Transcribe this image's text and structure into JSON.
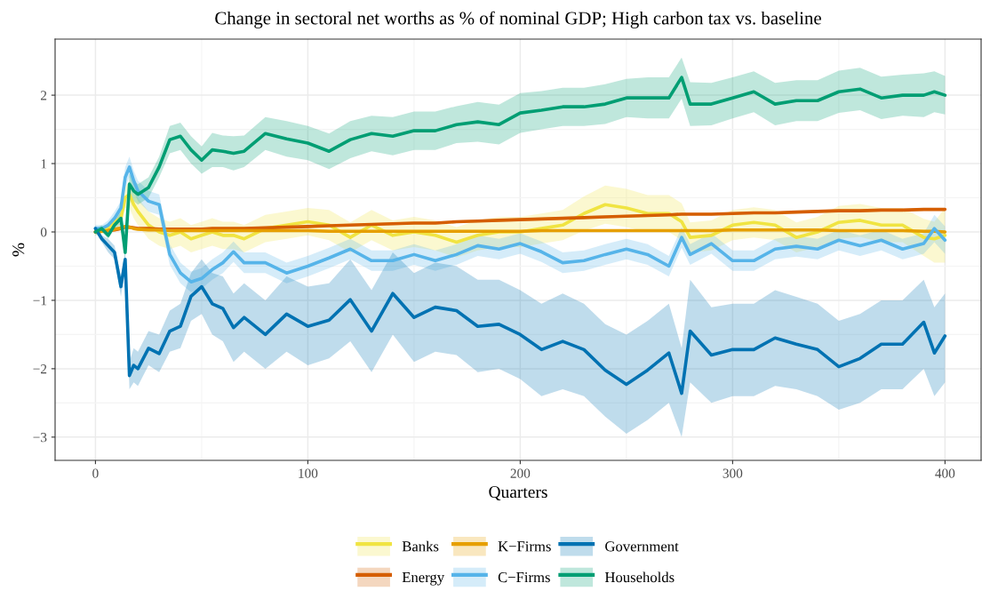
{
  "chart_data": {
    "type": "line",
    "title": "Change in sectoral net worths as % of nominal GDP; High carbon tax vs. baseline",
    "xlabel": "Quarters",
    "ylabel": "%",
    "x": [
      0,
      3,
      6,
      9,
      12,
      14,
      16,
      18,
      20,
      25,
      30,
      35,
      40,
      45,
      50,
      55,
      60,
      65,
      70,
      80,
      90,
      100,
      110,
      120,
      130,
      140,
      150,
      160,
      170,
      180,
      190,
      200,
      210,
      220,
      230,
      240,
      250,
      260,
      270,
      276,
      280,
      290,
      300,
      310,
      320,
      330,
      340,
      350,
      360,
      370,
      380,
      390,
      395,
      400
    ],
    "xlim": [
      -19,
      417
    ],
    "ylim": [
      -3.34,
      2.82
    ],
    "xticks": [
      0,
      100,
      200,
      300,
      400
    ],
    "yticks": [
      -3,
      -2,
      -1,
      0,
      1,
      2
    ],
    "grid": true,
    "legend": "bottom",
    "line_style": "solid",
    "marker": "none",
    "series": [
      {
        "name": "Banks",
        "color": "#f0e442",
        "values": [
          0.0,
          0.02,
          0.05,
          0.15,
          0.2,
          0.5,
          0.55,
          0.4,
          0.3,
          0.1,
          0.0,
          -0.05,
          0.0,
          -0.1,
          -0.05,
          0.0,
          -0.05,
          -0.05,
          -0.1,
          0.05,
          0.1,
          0.15,
          0.1,
          -0.08,
          0.1,
          -0.05,
          0.0,
          -0.05,
          -0.15,
          -0.05,
          0.0,
          0.0,
          0.05,
          0.1,
          0.27,
          0.4,
          0.35,
          0.27,
          0.27,
          0.15,
          -0.08,
          -0.05,
          0.1,
          0.14,
          0.1,
          -0.08,
          0.0,
          0.14,
          0.17,
          0.1,
          0.1,
          -0.08,
          -0.1,
          -0.05
        ],
        "lower": [
          -0.05,
          -0.03,
          0.0,
          0.08,
          0.1,
          0.35,
          0.35,
          0.2,
          0.1,
          -0.1,
          -0.2,
          -0.25,
          -0.2,
          -0.3,
          -0.25,
          -0.2,
          -0.25,
          -0.25,
          -0.3,
          -0.15,
          -0.1,
          -0.05,
          -0.12,
          -0.3,
          -0.12,
          -0.27,
          -0.22,
          -0.27,
          -0.37,
          -0.27,
          -0.22,
          -0.22,
          -0.17,
          -0.12,
          0.02,
          0.12,
          0.07,
          0.0,
          0.0,
          -0.12,
          -0.3,
          -0.27,
          -0.12,
          -0.08,
          -0.12,
          -0.3,
          -0.22,
          -0.1,
          -0.07,
          -0.15,
          -0.15,
          -0.35,
          -0.45,
          -0.45
        ],
        "upper": [
          0.05,
          0.07,
          0.1,
          0.22,
          0.3,
          0.65,
          0.75,
          0.6,
          0.5,
          0.3,
          0.2,
          0.15,
          0.2,
          0.1,
          0.15,
          0.2,
          0.15,
          0.15,
          0.1,
          0.25,
          0.3,
          0.35,
          0.32,
          0.14,
          0.32,
          0.17,
          0.22,
          0.17,
          0.07,
          0.17,
          0.22,
          0.22,
          0.27,
          0.32,
          0.52,
          0.68,
          0.63,
          0.54,
          0.54,
          0.42,
          0.14,
          0.17,
          0.32,
          0.36,
          0.32,
          0.14,
          0.22,
          0.38,
          0.41,
          0.35,
          0.35,
          0.19,
          0.15,
          0.35
        ]
      },
      {
        "name": "Energy",
        "color": "#d55e00",
        "values": [
          0.0,
          0.01,
          0.02,
          0.03,
          0.05,
          0.07,
          0.07,
          0.06,
          0.05,
          0.05,
          0.04,
          0.04,
          0.04,
          0.04,
          0.04,
          0.05,
          0.05,
          0.05,
          0.05,
          0.06,
          0.07,
          0.08,
          0.09,
          0.1,
          0.11,
          0.12,
          0.13,
          0.13,
          0.15,
          0.16,
          0.17,
          0.18,
          0.19,
          0.2,
          0.21,
          0.22,
          0.23,
          0.24,
          0.25,
          0.26,
          0.26,
          0.26,
          0.27,
          0.28,
          0.28,
          0.29,
          0.3,
          0.31,
          0.31,
          0.32,
          0.32,
          0.33,
          0.33,
          0.33
        ],
        "lower": [
          -0.02,
          -0.01,
          0.0,
          0.01,
          0.03,
          0.05,
          0.05,
          0.04,
          0.03,
          0.03,
          0.02,
          0.02,
          0.02,
          0.02,
          0.02,
          0.03,
          0.03,
          0.03,
          0.03,
          0.04,
          0.05,
          0.06,
          0.07,
          0.08,
          0.09,
          0.1,
          0.11,
          0.11,
          0.13,
          0.14,
          0.15,
          0.16,
          0.17,
          0.18,
          0.19,
          0.2,
          0.21,
          0.22,
          0.23,
          0.24,
          0.24,
          0.24,
          0.25,
          0.26,
          0.26,
          0.27,
          0.28,
          0.29,
          0.29,
          0.3,
          0.3,
          0.31,
          0.31,
          0.31
        ],
        "upper": [
          0.02,
          0.03,
          0.04,
          0.05,
          0.07,
          0.09,
          0.09,
          0.08,
          0.07,
          0.07,
          0.06,
          0.06,
          0.06,
          0.06,
          0.06,
          0.07,
          0.07,
          0.07,
          0.07,
          0.08,
          0.09,
          0.1,
          0.11,
          0.12,
          0.13,
          0.14,
          0.15,
          0.15,
          0.17,
          0.18,
          0.19,
          0.2,
          0.21,
          0.22,
          0.23,
          0.24,
          0.25,
          0.26,
          0.27,
          0.28,
          0.28,
          0.28,
          0.29,
          0.3,
          0.3,
          0.31,
          0.32,
          0.33,
          0.33,
          0.34,
          0.34,
          0.35,
          0.35,
          0.35
        ]
      },
      {
        "name": "K−Firms",
        "color": "#e69f00",
        "values": [
          0.0,
          0.01,
          0.02,
          0.04,
          0.06,
          0.08,
          0.07,
          0.05,
          0.04,
          0.03,
          0.03,
          0.02,
          0.02,
          0.02,
          0.02,
          0.02,
          0.02,
          0.02,
          0.02,
          0.02,
          0.02,
          0.02,
          0.01,
          0.01,
          0.01,
          0.01,
          0.01,
          0.01,
          0.01,
          0.01,
          0.01,
          0.01,
          0.02,
          0.02,
          0.02,
          0.02,
          0.02,
          0.02,
          0.02,
          0.02,
          0.02,
          0.02,
          0.03,
          0.03,
          0.03,
          0.03,
          0.03,
          0.02,
          0.02,
          0.02,
          0.02,
          0.01,
          0.01,
          0.0
        ],
        "lower": [
          -0.02,
          -0.01,
          0.0,
          0.02,
          0.04,
          0.06,
          0.05,
          0.03,
          0.02,
          0.01,
          0.01,
          0.0,
          0.0,
          0.0,
          0.0,
          0.0,
          0.0,
          0.0,
          0.0,
          0.0,
          0.0,
          0.0,
          -0.01,
          -0.01,
          -0.01,
          -0.01,
          -0.01,
          -0.01,
          -0.01,
          -0.01,
          -0.01,
          -0.01,
          0.0,
          0.0,
          0.0,
          0.0,
          0.0,
          0.0,
          0.0,
          0.0,
          0.0,
          0.0,
          0.01,
          0.01,
          0.01,
          0.01,
          0.01,
          0.0,
          0.0,
          0.0,
          0.0,
          -0.01,
          -0.01,
          -0.02
        ],
        "upper": [
          0.02,
          0.03,
          0.04,
          0.06,
          0.08,
          0.1,
          0.09,
          0.07,
          0.06,
          0.05,
          0.05,
          0.04,
          0.04,
          0.04,
          0.04,
          0.04,
          0.04,
          0.04,
          0.04,
          0.04,
          0.04,
          0.04,
          0.03,
          0.03,
          0.03,
          0.03,
          0.03,
          0.03,
          0.03,
          0.03,
          0.03,
          0.03,
          0.04,
          0.04,
          0.04,
          0.04,
          0.04,
          0.04,
          0.04,
          0.04,
          0.04,
          0.04,
          0.05,
          0.05,
          0.05,
          0.05,
          0.05,
          0.04,
          0.04,
          0.04,
          0.04,
          0.03,
          0.03,
          0.02
        ]
      },
      {
        "name": "C−Firms",
        "color": "#56b4e9",
        "values": [
          0.05,
          0.05,
          0.1,
          0.2,
          0.35,
          0.8,
          0.95,
          0.75,
          0.6,
          0.45,
          0.4,
          -0.33,
          -0.6,
          -0.73,
          -0.68,
          -0.55,
          -0.45,
          -0.29,
          -0.45,
          -0.45,
          -0.6,
          -0.5,
          -0.38,
          -0.25,
          -0.42,
          -0.42,
          -0.33,
          -0.42,
          -0.33,
          -0.2,
          -0.25,
          -0.17,
          -0.29,
          -0.45,
          -0.42,
          -0.33,
          -0.25,
          -0.33,
          -0.5,
          -0.08,
          -0.33,
          -0.17,
          -0.42,
          -0.42,
          -0.25,
          -0.21,
          -0.25,
          -0.12,
          -0.2,
          -0.12,
          -0.25,
          -0.17,
          0.05,
          -0.12
        ],
        "lower": [
          0.0,
          0.0,
          0.03,
          0.1,
          0.25,
          0.65,
          0.8,
          0.6,
          0.45,
          0.3,
          0.25,
          -0.48,
          -0.75,
          -0.88,
          -0.83,
          -0.7,
          -0.6,
          -0.44,
          -0.6,
          -0.6,
          -0.75,
          -0.65,
          -0.53,
          -0.4,
          -0.57,
          -0.57,
          -0.48,
          -0.57,
          -0.48,
          -0.35,
          -0.4,
          -0.32,
          -0.44,
          -0.6,
          -0.57,
          -0.48,
          -0.4,
          -0.48,
          -0.65,
          -0.23,
          -0.48,
          -0.32,
          -0.57,
          -0.57,
          -0.4,
          -0.36,
          -0.4,
          -0.27,
          -0.35,
          -0.27,
          -0.4,
          -0.32,
          -0.15,
          -0.32
        ],
        "upper": [
          0.1,
          0.1,
          0.17,
          0.3,
          0.45,
          0.95,
          1.1,
          0.9,
          0.75,
          0.6,
          0.55,
          -0.18,
          -0.45,
          -0.58,
          -0.53,
          -0.4,
          -0.3,
          -0.14,
          -0.3,
          -0.3,
          -0.45,
          -0.35,
          -0.23,
          -0.1,
          -0.27,
          -0.27,
          -0.18,
          -0.27,
          -0.18,
          -0.05,
          -0.1,
          -0.02,
          -0.14,
          -0.3,
          -0.27,
          -0.18,
          -0.1,
          -0.18,
          -0.35,
          0.07,
          -0.18,
          -0.02,
          -0.27,
          -0.27,
          -0.1,
          -0.06,
          -0.1,
          0.03,
          -0.05,
          0.03,
          -0.1,
          -0.02,
          0.25,
          0.08
        ]
      },
      {
        "name": "Government",
        "color": "#0072b2",
        "values": [
          0.05,
          -0.1,
          -0.2,
          -0.3,
          -0.8,
          -0.4,
          -2.1,
          -1.95,
          -2.0,
          -1.7,
          -1.78,
          -1.45,
          -1.38,
          -0.94,
          -0.8,
          -1.05,
          -1.12,
          -1.4,
          -1.25,
          -1.5,
          -1.2,
          -1.38,
          -1.29,
          -0.99,
          -1.45,
          -0.9,
          -1.25,
          -1.1,
          -1.15,
          -1.38,
          -1.35,
          -1.5,
          -1.72,
          -1.6,
          -1.72,
          -2.02,
          -2.23,
          -2.02,
          -1.77,
          -2.36,
          -1.45,
          -1.8,
          -1.72,
          -1.72,
          -1.55,
          -1.64,
          -1.72,
          -1.97,
          -1.85,
          -1.64,
          -1.64,
          -1.32,
          -1.77,
          -1.52
        ],
        "lower": [
          0.0,
          -0.15,
          -0.3,
          -0.4,
          -0.95,
          -0.5,
          -2.3,
          -2.2,
          -2.25,
          -1.95,
          -2.05,
          -1.75,
          -1.7,
          -1.3,
          -1.2,
          -1.5,
          -1.6,
          -1.9,
          -1.75,
          -2.0,
          -1.75,
          -1.95,
          -1.85,
          -1.6,
          -2.05,
          -1.5,
          -1.9,
          -1.75,
          -1.8,
          -2.05,
          -2.0,
          -2.15,
          -2.4,
          -2.3,
          -2.4,
          -2.7,
          -2.95,
          -2.75,
          -2.5,
          -3.0,
          -2.2,
          -2.5,
          -2.4,
          -2.4,
          -2.25,
          -2.3,
          -2.4,
          -2.6,
          -2.5,
          -2.3,
          -2.3,
          -2.0,
          -2.4,
          -2.2
        ],
        "upper": [
          0.1,
          -0.05,
          -0.1,
          -0.2,
          -0.65,
          -0.3,
          -1.9,
          -1.7,
          -1.75,
          -1.45,
          -1.5,
          -1.15,
          -1.05,
          -0.6,
          -0.4,
          -0.6,
          -0.65,
          -0.9,
          -0.75,
          -1.0,
          -0.65,
          -0.8,
          -0.75,
          -0.4,
          -0.85,
          -0.3,
          -0.6,
          -0.45,
          -0.5,
          -0.7,
          -0.7,
          -0.85,
          -1.05,
          -0.9,
          -1.05,
          -1.35,
          -1.5,
          -1.3,
          -1.05,
          -1.7,
          -0.7,
          -1.1,
          -1.05,
          -1.05,
          -0.85,
          -0.95,
          -1.05,
          -1.3,
          -1.2,
          -1.0,
          -1.0,
          -0.7,
          -1.1,
          -0.9
        ]
      },
      {
        "name": "Households",
        "color": "#009e73",
        "values": [
          0.0,
          0.05,
          -0.05,
          0.1,
          0.2,
          -0.3,
          0.7,
          0.6,
          0.55,
          0.65,
          0.95,
          1.35,
          1.4,
          1.2,
          1.05,
          1.2,
          1.18,
          1.15,
          1.18,
          1.44,
          1.36,
          1.3,
          1.18,
          1.35,
          1.44,
          1.4,
          1.48,
          1.48,
          1.57,
          1.61,
          1.57,
          1.74,
          1.78,
          1.83,
          1.83,
          1.87,
          1.96,
          1.96,
          1.96,
          2.26,
          1.87,
          1.87,
          1.96,
          2.05,
          1.87,
          1.92,
          1.92,
          2.05,
          2.09,
          1.96,
          2.0,
          2.0,
          2.05,
          2.0
        ],
        "lower": [
          -0.05,
          0.0,
          -0.1,
          0.05,
          0.1,
          -0.4,
          0.55,
          0.45,
          0.4,
          0.5,
          0.8,
          1.15,
          1.2,
          1.0,
          0.85,
          0.95,
          0.95,
          0.9,
          0.95,
          1.2,
          1.1,
          1.05,
          0.92,
          1.08,
          1.18,
          1.12,
          1.2,
          1.2,
          1.3,
          1.32,
          1.28,
          1.45,
          1.5,
          1.55,
          1.55,
          1.58,
          1.68,
          1.66,
          1.66,
          1.95,
          1.55,
          1.56,
          1.66,
          1.75,
          1.56,
          1.62,
          1.62,
          1.74,
          1.78,
          1.65,
          1.7,
          1.68,
          1.75,
          1.72
        ],
        "upper": [
          0.05,
          0.1,
          0.0,
          0.15,
          0.3,
          -0.2,
          0.85,
          0.75,
          0.7,
          0.8,
          1.1,
          1.55,
          1.6,
          1.4,
          1.25,
          1.45,
          1.41,
          1.4,
          1.41,
          1.68,
          1.62,
          1.55,
          1.44,
          1.62,
          1.7,
          1.68,
          1.76,
          1.76,
          1.84,
          1.9,
          1.86,
          2.03,
          2.06,
          2.11,
          2.11,
          2.16,
          2.24,
          2.26,
          2.26,
          2.55,
          2.19,
          2.18,
          2.26,
          2.35,
          2.18,
          2.22,
          2.22,
          2.36,
          2.4,
          2.27,
          2.3,
          2.32,
          2.35,
          2.28
        ]
      }
    ]
  }
}
